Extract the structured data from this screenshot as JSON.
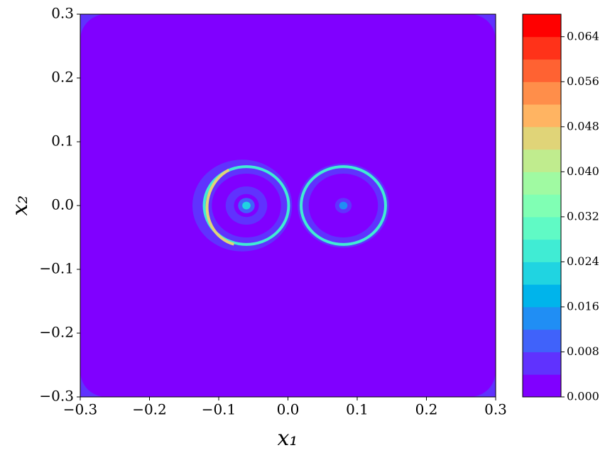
{
  "chart_data": {
    "type": "contour",
    "xlabel": "x₁",
    "ylabel": "x₂",
    "xlim": [
      -0.3,
      0.3
    ],
    "ylim": [
      -0.3,
      0.3
    ],
    "xticks": [
      {
        "value": -0.3,
        "label": "−0.3"
      },
      {
        "value": -0.2,
        "label": "−0.2"
      },
      {
        "value": -0.1,
        "label": "−0.1"
      },
      {
        "value": 0,
        "label": "0.0"
      },
      0.1,
      0.2,
      0.3
    ],
    "yticks": [
      {
        "value": -0.3,
        "label": "−0.3"
      },
      {
        "value": -0.2,
        "label": "−0.2"
      },
      {
        "value": -0.1,
        "label": "−0.1"
      },
      {
        "value": 0,
        "label": "0.0"
      },
      0.1,
      0.2,
      0.3
    ],
    "levels": [
      0,
      0.004,
      0.008,
      0.012,
      0.016,
      0.02,
      0.024,
      0.028,
      0.032,
      0.036,
      0.04,
      0.044,
      0.048,
      0.052,
      0.056,
      0.06,
      0.064,
      0.068
    ],
    "colors": [
      "#8000ff",
      "#6032fe",
      "#4062fa",
      "#208ef4",
      "#00b4eb",
      "#20d4e1",
      "#40ecd4",
      "#60fac5",
      "#80ffb4",
      "#a0faa2",
      "#c0ec8e",
      "#e0d478",
      "#ffb462",
      "#ff8e4a",
      "#ff6232",
      "#ff3219",
      "#ff0000"
    ],
    "colorbar_ticks": [
      {
        "value": 0,
        "label": "0.000"
      },
      0.008,
      0.016,
      0.024,
      0.032,
      {
        "value": 0.04,
        "label": "0.040"
      },
      0.048,
      0.056,
      0.064
    ],
    "edge_level": 0.002,
    "discs": [
      {
        "x": -0.066,
        "y": 0,
        "r": 0.072,
        "level": 0.005
      },
      {
        "x": -0.06,
        "y": 0,
        "r": 0.05,
        "level": 0.001
      },
      {
        "x": -0.06,
        "y": 0,
        "r": 0.03,
        "level": 0.005
      },
      {
        "x": -0.06,
        "y": 0,
        "r": 0.018,
        "level": 0.001
      },
      {
        "x": -0.06,
        "y": 0,
        "r": 0.012,
        "level": 0.009
      },
      {
        "x": -0.06,
        "y": 0,
        "r": 0.006,
        "level": 0.021
      },
      {
        "x": 0.08,
        "y": 0,
        "r": 0.066,
        "level": 0.005
      },
      {
        "x": 0.08,
        "y": 0,
        "r": 0.05,
        "level": 0.001
      },
      {
        "x": 0.08,
        "y": 0,
        "r": 0.012,
        "level": 0.005
      },
      {
        "x": 0.08,
        "y": 0,
        "r": 0.006,
        "level": 0.013
      }
    ],
    "rings": [
      {
        "x": -0.06,
        "y": 0,
        "r": 0.061,
        "level": 0.025
      },
      {
        "x": 0.08,
        "y": 0,
        "r": 0.061,
        "level": 0.025
      },
      {
        "x": -0.063,
        "y": 0,
        "r": 0.058,
        "level": 0.045
      }
    ]
  }
}
